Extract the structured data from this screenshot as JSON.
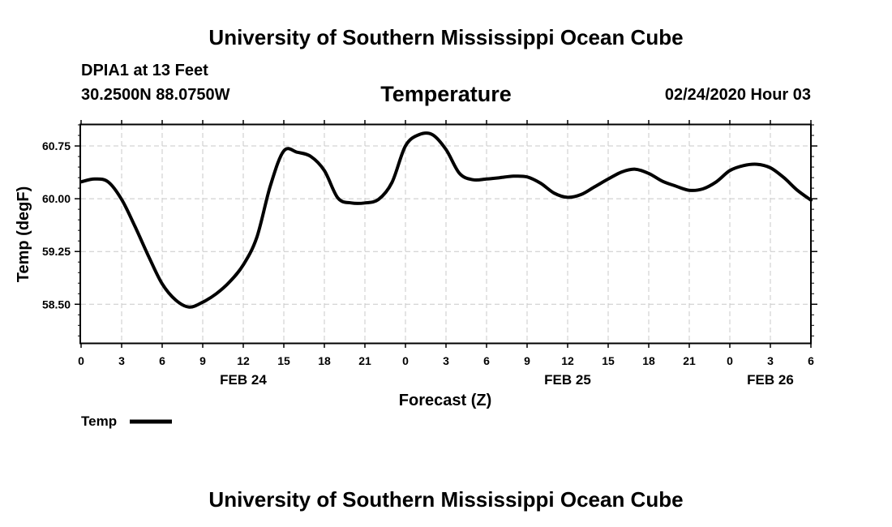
{
  "header": {
    "title": "University of Southern Mississippi Ocean Cube",
    "station": "DPIA1 at 13 Feet",
    "coords": "30.2500N 88.0750W",
    "variable": "Temperature",
    "datetime": "02/24/2020 Hour 03"
  },
  "footer": {
    "title": "University of Southern Mississippi Ocean Cube"
  },
  "legend": {
    "label": "Temp"
  },
  "chart_data": {
    "type": "line",
    "title": "Temperature",
    "xlabel": "Forecast (Z)",
    "ylabel": "Temp (degF)",
    "x_unit": "hours from FEB 24 00Z",
    "xlim": [
      0,
      54
    ],
    "ylim": [
      57.95,
      61.05
    ],
    "grid": true,
    "line_color": "#000000",
    "x_ticks": [
      {
        "x": 0,
        "label": "0"
      },
      {
        "x": 3,
        "label": "3"
      },
      {
        "x": 6,
        "label": "6"
      },
      {
        "x": 9,
        "label": "9"
      },
      {
        "x": 12,
        "label": "12"
      },
      {
        "x": 15,
        "label": "15"
      },
      {
        "x": 18,
        "label": "18"
      },
      {
        "x": 21,
        "label": "21"
      },
      {
        "x": 24,
        "label": "0"
      },
      {
        "x": 27,
        "label": "3"
      },
      {
        "x": 30,
        "label": "6"
      },
      {
        "x": 33,
        "label": "9"
      },
      {
        "x": 36,
        "label": "12"
      },
      {
        "x": 39,
        "label": "15"
      },
      {
        "x": 42,
        "label": "18"
      },
      {
        "x": 45,
        "label": "21"
      },
      {
        "x": 48,
        "label": "0"
      },
      {
        "x": 51,
        "label": "3"
      },
      {
        "x": 54,
        "label": "6"
      }
    ],
    "day_labels": [
      {
        "x": 12,
        "label": "FEB 24"
      },
      {
        "x": 36,
        "label": "FEB 25"
      },
      {
        "x": 51,
        "label": "FEB 26"
      }
    ],
    "y_ticks": [
      {
        "y": 58.5,
        "label": "58.50"
      },
      {
        "y": 59.25,
        "label": "59.25"
      },
      {
        "y": 60.0,
        "label": "60.00"
      },
      {
        "y": 60.75,
        "label": "60.75"
      }
    ],
    "y_minor_step": 0.15,
    "series": [
      {
        "name": "Temp",
        "x": [
          0,
          1,
          2,
          3,
          4,
          5,
          6,
          7,
          8,
          9,
          10,
          11,
          12,
          13,
          14,
          15,
          16,
          17,
          18,
          19,
          20,
          21,
          22,
          23,
          24,
          25,
          26,
          27,
          28,
          29,
          30,
          31,
          32,
          33,
          34,
          35,
          36,
          37,
          38,
          39,
          40,
          41,
          42,
          43,
          44,
          45,
          46,
          47,
          48,
          49,
          50,
          51,
          52,
          53,
          54
        ],
        "y": [
          60.24,
          60.28,
          60.24,
          59.99,
          59.6,
          59.18,
          58.79,
          58.56,
          58.46,
          58.53,
          58.65,
          58.82,
          59.06,
          59.45,
          60.18,
          60.68,
          60.66,
          60.6,
          60.4,
          60.01,
          59.94,
          59.94,
          59.99,
          60.23,
          60.75,
          60.91,
          60.91,
          60.7,
          60.36,
          60.27,
          60.28,
          60.3,
          60.32,
          60.31,
          60.22,
          60.08,
          60.02,
          60.06,
          60.17,
          60.28,
          60.38,
          60.42,
          60.36,
          60.25,
          60.18,
          60.12,
          60.14,
          60.24,
          60.4,
          60.47,
          60.49,
          60.44,
          60.3,
          60.12,
          59.98
        ]
      }
    ]
  }
}
